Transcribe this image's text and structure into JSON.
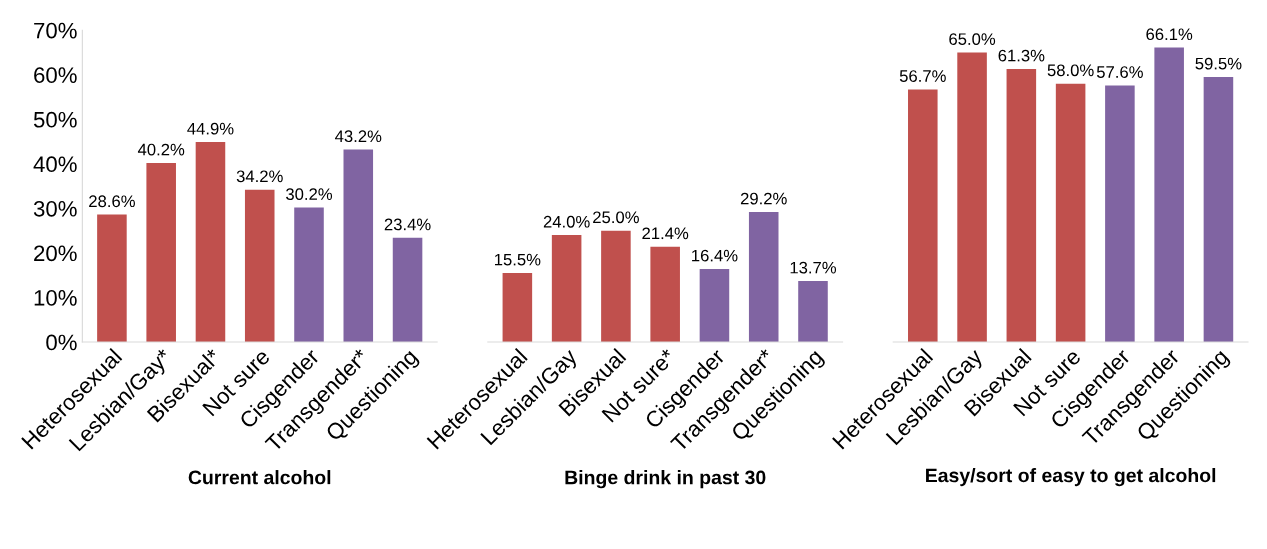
{
  "chart_data": [
    {
      "type": "bar",
      "xlabel": "Current alcohol",
      "categories": [
        "Heterosexual",
        "Lesbian/Gay*",
        "Bisexual*",
        "Not sure",
        "Cisgender",
        "Transgender*",
        "Questioning"
      ],
      "values": [
        28.6,
        40.2,
        44.9,
        34.2,
        30.2,
        43.2,
        23.4
      ],
      "colors": [
        "#c0504d",
        "#c0504d",
        "#c0504d",
        "#c0504d",
        "#8064a2",
        "#8064a2",
        "#8064a2"
      ],
      "value_labels": [
        "28.6%",
        "40.2%",
        "44.9%",
        "34.2%",
        "30.2%",
        "43.2%",
        "23.4%"
      ],
      "ylim": [
        0,
        70
      ],
      "yticks": [
        {
          "value": 0,
          "label": "0%"
        },
        {
          "value": 10,
          "label": "10%"
        },
        {
          "value": 20,
          "label": "20%"
        },
        {
          "value": 30,
          "label": "30%"
        },
        {
          "value": 40,
          "label": "40%"
        },
        {
          "value": 50,
          "label": "50%"
        },
        {
          "value": 60,
          "label": "60%"
        },
        {
          "value": 70,
          "label": "70%"
        }
      ]
    },
    {
      "type": "bar",
      "xlabel": "Binge drink in past 30",
      "categories": [
        "Heterosexual",
        "Lesbian/Gay",
        "Bisexual",
        "Not sure*",
        "Cisgender",
        "Transgender*",
        "Questioning"
      ],
      "values": [
        15.5,
        24.0,
        25.0,
        21.4,
        16.4,
        29.2,
        13.7
      ],
      "colors": [
        "#c0504d",
        "#c0504d",
        "#c0504d",
        "#c0504d",
        "#8064a2",
        "#8064a2",
        "#8064a2"
      ],
      "value_labels": [
        "15.5%",
        "24.0%",
        "25.0%",
        "21.4%",
        "16.4%",
        "29.2%",
        "13.7%"
      ],
      "ylim": [
        0,
        70
      ],
      "tick_labels": "x"
    },
    {
      "type": "bar",
      "xlabel": "Easy/sort of easy to get alcohol",
      "categories": [
        "Heterosexual",
        "Lesbian/Gay",
        "Bisexual",
        "Not sure",
        "Cisgender",
        "Transgender",
        "Questioning"
      ],
      "values": [
        56.7,
        65.0,
        61.3,
        58.0,
        57.6,
        66.1,
        59.5
      ],
      "colors": [
        "#c0504d",
        "#c0504d",
        "#c0504d",
        "#c0504d",
        "#8064a2",
        "#8064a2",
        "#8064a2"
      ],
      "value_labels": [
        "56.7%",
        "65.0%",
        "61.3%",
        "58.0%",
        "57.6%",
        "66.1%",
        "59.5%"
      ],
      "ylim": [
        0,
        70
      ],
      "tick_labels": "x"
    }
  ]
}
